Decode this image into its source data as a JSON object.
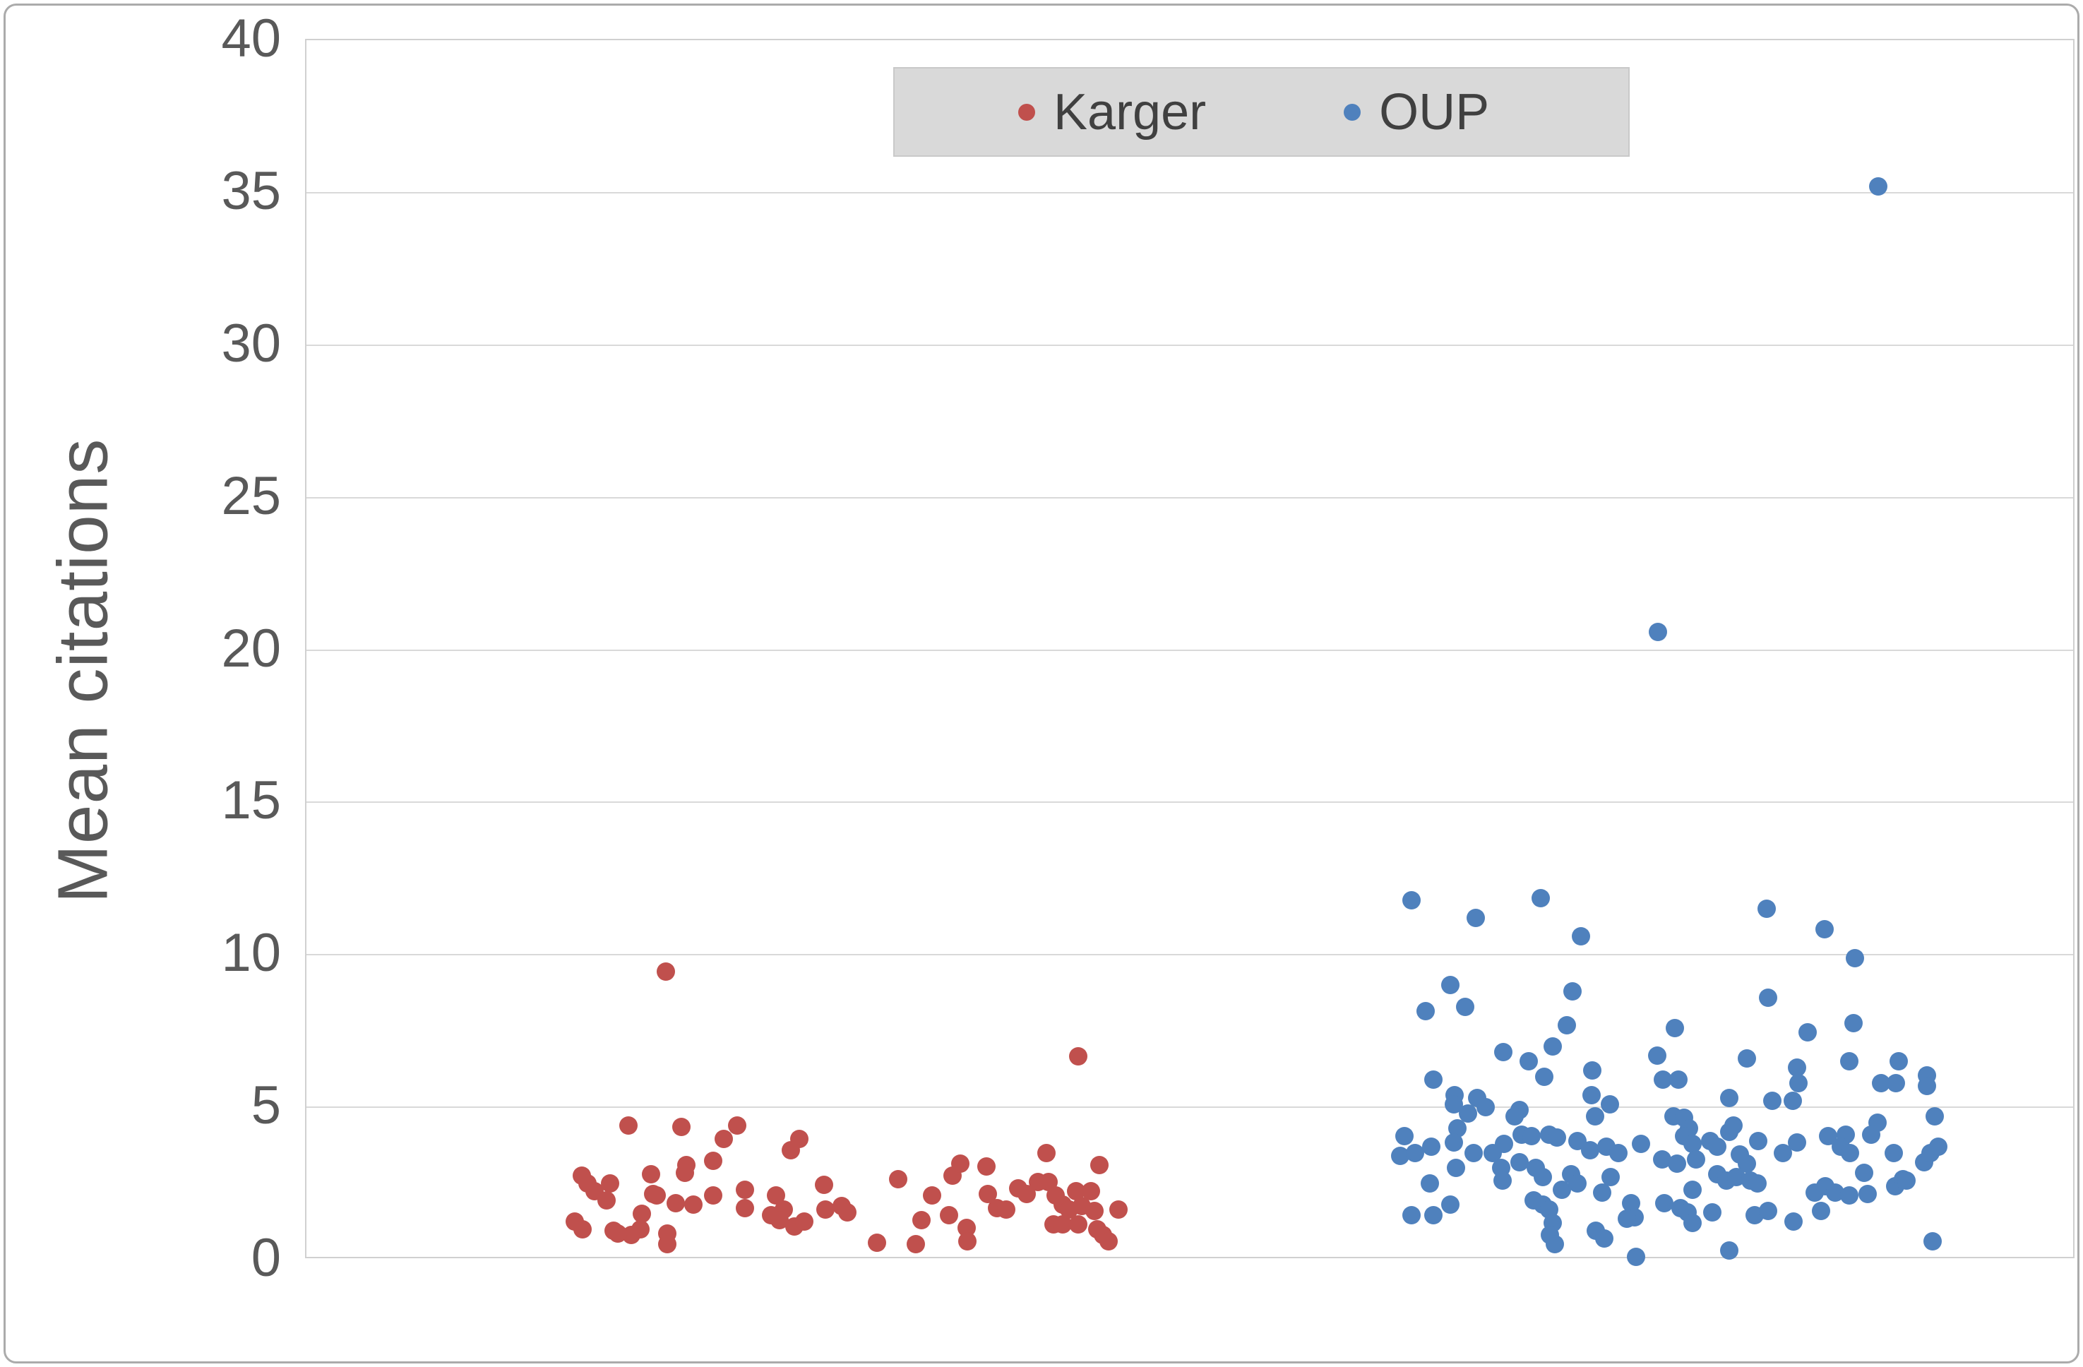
{
  "figure": {
    "background": "#ffffff",
    "border_color": "#ababab"
  },
  "axis": {
    "title": "Mean citations",
    "min": 0,
    "max": 40,
    "ticks": [
      0,
      5,
      10,
      15,
      20,
      25,
      30,
      35,
      40
    ],
    "label_color": "#595959",
    "gridline_color": "#d9d9d9",
    "grid": "horizontal-only",
    "x_tick_labels": "none"
  },
  "legend": {
    "background": "#d9d9d9",
    "position": "top-center",
    "items": [
      {
        "label": "Karger",
        "color": "#c0504d"
      },
      {
        "label": "OUP",
        "color": "#4f81bd"
      }
    ]
  },
  "chart_data": {
    "type": "scatter",
    "title": "",
    "xlabel": "",
    "ylabel": "Mean citations",
    "ylim": [
      0,
      40
    ],
    "legend_position": "top-center",
    "x_unit": "pixel-jitter (categorical strip plot, no x axis labels)",
    "series": [
      {
        "name": "Karger",
        "color": "#c0504d",
        "marker_radius": 13,
        "points": [
          [
            941,
            9.45
          ],
          [
            888,
            4.4
          ],
          [
            963,
            4.35
          ],
          [
            1042,
            4.4
          ],
          [
            1023,
            3.95
          ],
          [
            1008,
            3.25
          ],
          [
            1130,
            3.95
          ],
          [
            1118,
            3.6
          ],
          [
            970,
            3.1
          ],
          [
            968,
            2.85
          ],
          [
            822,
            2.75
          ],
          [
            830,
            2.5
          ],
          [
            840,
            2.25
          ],
          [
            862,
            2.5
          ],
          [
            857,
            1.95
          ],
          [
            920,
            2.8
          ],
          [
            923,
            2.15
          ],
          [
            928,
            2.1
          ],
          [
            955,
            1.85
          ],
          [
            980,
            1.8
          ],
          [
            1008,
            2.1
          ],
          [
            1053,
            2.3
          ],
          [
            1053,
            1.7
          ],
          [
            1097,
            2.1
          ],
          [
            1090,
            1.45
          ],
          [
            1108,
            1.65
          ],
          [
            1102,
            1.3
          ],
          [
            1123,
            1.1
          ],
          [
            1137,
            1.25
          ],
          [
            1165,
            2.45
          ],
          [
            1167,
            1.65
          ],
          [
            1190,
            1.75
          ],
          [
            1198,
            1.55
          ],
          [
            907,
            1.5
          ],
          [
            905,
            1.0
          ],
          [
            892,
            0.8
          ],
          [
            812,
            1.25
          ],
          [
            823,
            1.0
          ],
          [
            867,
            0.95
          ],
          [
            873,
            0.85
          ],
          [
            943,
            0.85
          ],
          [
            943,
            0.5
          ],
          [
            1525,
            6.67
          ],
          [
            1270,
            2.65
          ],
          [
            1318,
            2.1
          ],
          [
            1347,
            2.75
          ],
          [
            1358,
            3.15
          ],
          [
            1395,
            3.05
          ],
          [
            1397,
            2.15
          ],
          [
            1410,
            1.7
          ],
          [
            1423,
            1.65
          ],
          [
            1440,
            2.35
          ],
          [
            1452,
            2.15
          ],
          [
            1480,
            3.5
          ],
          [
            1468,
            2.55
          ],
          [
            1483,
            2.55
          ],
          [
            1493,
            2.1
          ],
          [
            1503,
            1.8
          ],
          [
            1490,
            1.15
          ],
          [
            1503,
            1.15
          ],
          [
            1512,
            1.65
          ],
          [
            1522,
            2.25
          ],
          [
            1525,
            1.15
          ],
          [
            1530,
            1.75
          ],
          [
            1543,
            2.25
          ],
          [
            1548,
            1.6
          ],
          [
            1555,
            3.1
          ],
          [
            1552,
            1.0
          ],
          [
            1560,
            0.8
          ],
          [
            1568,
            0.6
          ],
          [
            1582,
            1.65
          ],
          [
            1303,
            1.3
          ],
          [
            1295,
            0.5
          ],
          [
            1342,
            1.45
          ],
          [
            1367,
            1.05
          ],
          [
            1368,
            0.6
          ],
          [
            1240,
            0.55
          ]
        ]
      },
      {
        "name": "OUP",
        "color": "#4f81bd",
        "marker_radius": 13,
        "points": [
          [
            2658,
            35.2
          ],
          [
            2346,
            20.6
          ],
          [
            1997,
            11.8
          ],
          [
            2180,
            11.85
          ],
          [
            2088,
            11.2
          ],
          [
            2237,
            10.6
          ],
          [
            2052,
            9.0
          ],
          [
            2017,
            8.15
          ],
          [
            2073,
            8.3
          ],
          [
            2225,
            8.8
          ],
          [
            2217,
            7.7
          ],
          [
            2127,
            6.8
          ],
          [
            2163,
            6.5
          ],
          [
            2197,
            7.0
          ],
          [
            2185,
            6.0
          ],
          [
            2253,
            6.2
          ],
          [
            2028,
            5.9
          ],
          [
            2058,
            5.4
          ],
          [
            2057,
            5.1
          ],
          [
            2090,
            5.3
          ],
          [
            2102,
            5.0
          ],
          [
            2077,
            4.8
          ],
          [
            2150,
            4.9
          ],
          [
            2143,
            4.7
          ],
          [
            2252,
            5.4
          ],
          [
            2278,
            5.1
          ],
          [
            2257,
            4.7
          ],
          [
            2062,
            4.3
          ],
          [
            1987,
            4.05
          ],
          [
            1981,
            3.4
          ],
          [
            2002,
            3.5
          ],
          [
            2025,
            3.7
          ],
          [
            2057,
            3.85
          ],
          [
            2085,
            3.5
          ],
          [
            2112,
            3.5
          ],
          [
            2128,
            3.8
          ],
          [
            2153,
            4.1
          ],
          [
            2167,
            4.05
          ],
          [
            2192,
            4.1
          ],
          [
            2203,
            4.0
          ],
          [
            2232,
            3.9
          ],
          [
            2250,
            3.6
          ],
          [
            2273,
            3.7
          ],
          [
            2060,
            3.0
          ],
          [
            2150,
            3.2
          ],
          [
            2173,
            3.0
          ],
          [
            2124,
            3.0
          ],
          [
            2126,
            2.6
          ],
          [
            2183,
            2.7
          ],
          [
            2023,
            2.5
          ],
          [
            2210,
            2.3
          ],
          [
            2223,
            2.8
          ],
          [
            2232,
            2.5
          ],
          [
            2267,
            2.2
          ],
          [
            2052,
            1.8
          ],
          [
            2170,
            1.95
          ],
          [
            2183,
            1.8
          ],
          [
            2192,
            1.65
          ],
          [
            1997,
            1.45
          ],
          [
            2028,
            1.45
          ],
          [
            2197,
            1.2
          ],
          [
            2193,
            0.8
          ],
          [
            2200,
            0.5
          ],
          [
            2258,
            0.95
          ],
          [
            2270,
            0.7
          ],
          [
            2500,
            11.5
          ],
          [
            2582,
            10.85
          ],
          [
            2502,
            8.6
          ],
          [
            2370,
            7.6
          ],
          [
            2558,
            7.45
          ],
          [
            2345,
            6.7
          ],
          [
            2472,
            6.6
          ],
          [
            2543,
            6.3
          ],
          [
            2545,
            5.8
          ],
          [
            2353,
            5.9
          ],
          [
            2375,
            5.9
          ],
          [
            2447,
            5.3
          ],
          [
            2508,
            5.2
          ],
          [
            2537,
            5.2
          ],
          [
            2368,
            4.7
          ],
          [
            2383,
            4.65
          ],
          [
            2390,
            4.3
          ],
          [
            2383,
            4.05
          ],
          [
            2395,
            3.8
          ],
          [
            2420,
            3.9
          ],
          [
            2430,
            3.7
          ],
          [
            2447,
            4.2
          ],
          [
            2453,
            4.4
          ],
          [
            2290,
            3.5
          ],
          [
            2322,
            3.8
          ],
          [
            2352,
            3.3
          ],
          [
            2373,
            3.15
          ],
          [
            2400,
            3.3
          ],
          [
            2462,
            3.45
          ],
          [
            2472,
            3.15
          ],
          [
            2488,
            3.9
          ],
          [
            2523,
            3.5
          ],
          [
            2543,
            3.85
          ],
          [
            2430,
            2.8
          ],
          [
            2443,
            2.6
          ],
          [
            2457,
            2.7
          ],
          [
            2477,
            2.6
          ],
          [
            2487,
            2.5
          ],
          [
            2395,
            2.3
          ],
          [
            2279,
            2.7
          ],
          [
            2308,
            1.85
          ],
          [
            2313,
            1.4
          ],
          [
            2302,
            1.35
          ],
          [
            2355,
            1.85
          ],
          [
            2378,
            1.7
          ],
          [
            2388,
            1.55
          ],
          [
            2395,
            1.2
          ],
          [
            2423,
            1.55
          ],
          [
            2483,
            1.45
          ],
          [
            2502,
            1.6
          ],
          [
            2538,
            1.25
          ],
          [
            2568,
            2.2
          ],
          [
            2577,
            1.6
          ],
          [
            2447,
            0.3
          ],
          [
            2315,
            0.1
          ],
          [
            2625,
            9.9
          ],
          [
            2623,
            7.75
          ],
          [
            2617,
            6.5
          ],
          [
            2687,
            6.5
          ],
          [
            2662,
            5.8
          ],
          [
            2683,
            5.8
          ],
          [
            2727,
            6.05
          ],
          [
            2727,
            5.7
          ],
          [
            2738,
            4.7
          ],
          [
            2657,
            4.5
          ],
          [
            2648,
            4.1
          ],
          [
            2587,
            4.05
          ],
          [
            2612,
            4.1
          ],
          [
            2605,
            3.7
          ],
          [
            2618,
            3.5
          ],
          [
            2680,
            3.5
          ],
          [
            2723,
            3.2
          ],
          [
            2732,
            3.5
          ],
          [
            2743,
            3.7
          ],
          [
            2638,
            2.85
          ],
          [
            2682,
            2.4
          ],
          [
            2693,
            2.65
          ],
          [
            2583,
            2.4
          ],
          [
            2597,
            2.2
          ],
          [
            2617,
            2.1
          ],
          [
            2643,
            2.15
          ],
          [
            2698,
            2.6
          ],
          [
            2735,
            0.6
          ]
        ]
      }
    ]
  }
}
